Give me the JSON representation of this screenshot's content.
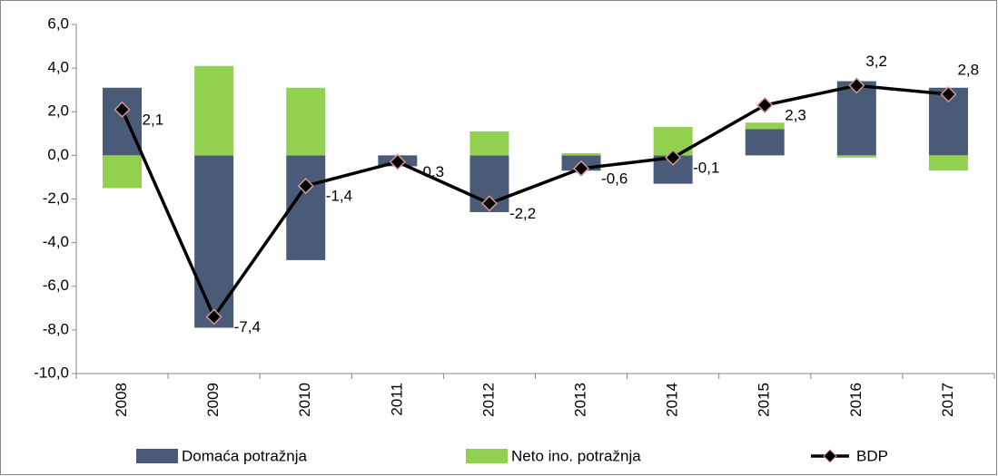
{
  "chart_data": {
    "type": "bar",
    "categories": [
      "2008",
      "2009",
      "2010",
      "2011",
      "2012",
      "2013",
      "2014",
      "2015",
      "2016",
      "2017"
    ],
    "series": [
      {
        "name": "Domaća potražnja",
        "color": "#4a5b78",
        "values": [
          3.1,
          -7.9,
          -4.8,
          -0.5,
          -2.6,
          -0.7,
          -1.3,
          1.2,
          3.4,
          3.1
        ]
      },
      {
        "name": "Neto ino. potražnja",
        "color": "#92d050",
        "values": [
          -1.5,
          4.1,
          3.1,
          0.0,
          1.1,
          0.1,
          1.3,
          0.3,
          -0.1,
          -0.7
        ]
      },
      {
        "name": "BDP",
        "type": "line",
        "color": "#000000",
        "marker_edge": "#d99694",
        "values": [
          2.1,
          -7.4,
          -1.4,
          -0.3,
          -2.2,
          -0.6,
          -0.1,
          2.3,
          3.2,
          2.8
        ],
        "value_labels": [
          "2,1",
          "-7,4",
          "-1,4",
          "-0,3",
          "-2,2",
          "-0,6",
          "-0,1",
          "2,3",
          "3,2",
          "2,8"
        ]
      }
    ],
    "ylim": [
      -10,
      6
    ],
    "yticks": [
      {
        "value": -10,
        "label": "-10,0"
      },
      {
        "value": -8,
        "label": "-8,0"
      },
      {
        "value": -6,
        "label": "-6,0"
      },
      {
        "value": -4,
        "label": "-4,0"
      },
      {
        "value": -2,
        "label": "-2,0"
      },
      {
        "value": 0,
        "label": "0,0"
      },
      {
        "value": 2,
        "label": "2,0"
      },
      {
        "value": 4,
        "label": "4,0"
      },
      {
        "value": 6,
        "label": "6,0"
      }
    ],
    "legend": "bottom"
  }
}
